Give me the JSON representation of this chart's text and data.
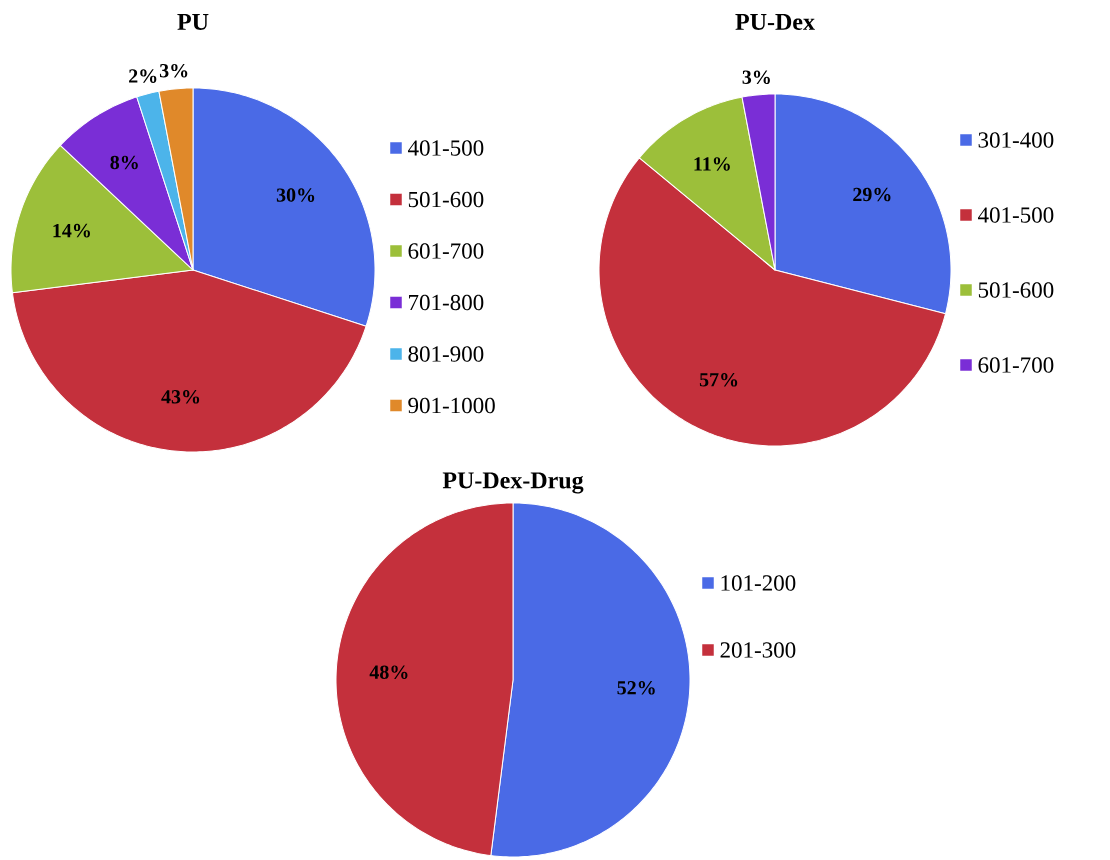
{
  "chart_data": [
    {
      "type": "pie",
      "title": "PU",
      "categories": [
        "401-500",
        "501-600",
        "601-700",
        "701-800",
        "801-900",
        "901-1000"
      ],
      "values": [
        30,
        43,
        14,
        8,
        2,
        3
      ],
      "colors": [
        "#4a6ae6",
        "#c4303c",
        "#9cbf3a",
        "#7a2ed6",
        "#4cb4ea",
        "#e0892a"
      ],
      "value_labels": [
        "30%",
        "43%",
        "14%",
        "8%",
        "2%",
        "3%"
      ],
      "legend": "right"
    },
    {
      "type": "pie",
      "title": "PU-Dex",
      "categories": [
        "301-400",
        "401-500",
        "501-600",
        "601-700"
      ],
      "values": [
        29,
        57,
        11,
        3
      ],
      "colors": [
        "#4a6ae6",
        "#c4303c",
        "#9cbf3a",
        "#7a2ed6"
      ],
      "value_labels": [
        "29%",
        "57%",
        "11%",
        "3%"
      ],
      "legend": "right"
    },
    {
      "type": "pie",
      "title": "PU-Dex-Drug",
      "categories": [
        "101-200",
        "201-300"
      ],
      "values": [
        52,
        48
      ],
      "colors": [
        "#4a6ae6",
        "#c4303c"
      ],
      "value_labels": [
        "52%",
        "48%"
      ],
      "legend": "right"
    }
  ]
}
